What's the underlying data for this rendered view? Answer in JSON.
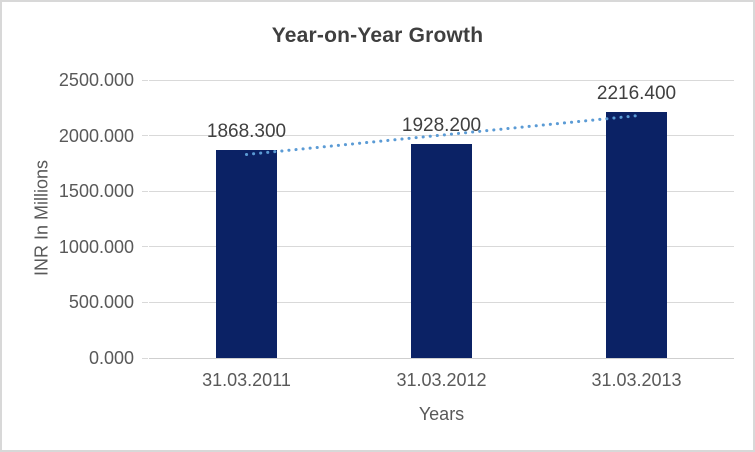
{
  "chart_data": {
    "type": "bar",
    "title": "Year-on-Year Growth",
    "categories": [
      "31.03.2011",
      "31.03.2012",
      "31.03.2013"
    ],
    "values": [
      1868.3,
      1928.2,
      2216.4
    ],
    "data_labels": [
      "1868.300",
      "1928.200",
      "2216.400"
    ],
    "xlabel": "Years",
    "ylabel": "INR In Millions",
    "ylim": [
      0,
      2500
    ],
    "ytick_step": 500,
    "ytick_labels": [
      "0.000",
      "500.000",
      "1000.000",
      "1500.000",
      "2000.000",
      "2500.000"
    ],
    "grid": true,
    "legend": "none",
    "trendline": {
      "type": "linear",
      "style": "dotted",
      "endpoint_values": [
        1830.25,
        2178.35
      ]
    },
    "colors": {
      "bar": "#0b2265",
      "trendline": "#5b9bd5",
      "gridline": "#d9d9d9",
      "axis_line": "#cfcfcf",
      "tick_text": "#595959",
      "title_text": "#3f3f3f",
      "data_label_text": "#404040",
      "border": "#d8d8d8"
    }
  }
}
